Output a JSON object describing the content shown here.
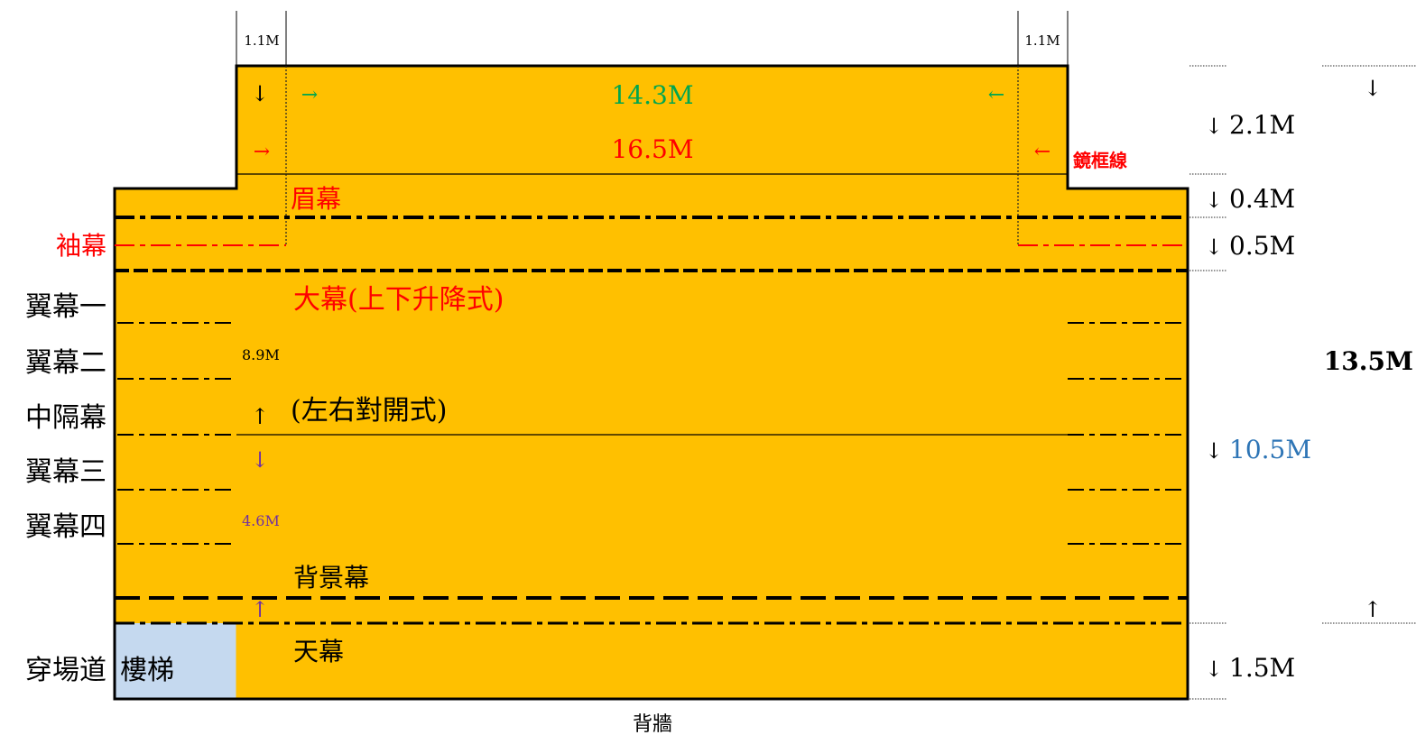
{
  "colors": {
    "stage_fill": "#FFC000",
    "stairs_fill": "#C5D9EF",
    "outline": "#000000",
    "red": "#FF0000",
    "green": "#00A64F",
    "blue": "#2E75B6",
    "purple": "#7030A0"
  },
  "top": {
    "side_width_left": "1.1M",
    "side_width_right": "1.1M",
    "width_inner": "14.3M",
    "width_outer": "16.5M",
    "proscenium_label": "鏡框線"
  },
  "curtains": {
    "valance": "眉幕",
    "leg": "袖幕",
    "main_curtain": "大幕(上下升降式)",
    "mid_traveler": "(左右對開式)",
    "backdrop": "背景幕",
    "sky": "天幕"
  },
  "wings": [
    "翼幕一",
    "翼幕二",
    "中隔幕",
    "翼幕三",
    "翼幕四"
  ],
  "crossover": "穿場道",
  "stairs": "樓梯",
  "back_wall": "背牆",
  "inner_dims": {
    "upper": "8.9M",
    "lower": "4.6M"
  },
  "right_dims": {
    "apron": "2.1M",
    "valance_depth": "0.4M",
    "leg_depth": "0.5M",
    "main_depth": "10.5M",
    "crossover_depth": "1.5M",
    "total_depth": "13.5M"
  },
  "glyphs": {
    "down": "↓",
    "up": "↑",
    "right": "→",
    "left": "←"
  }
}
